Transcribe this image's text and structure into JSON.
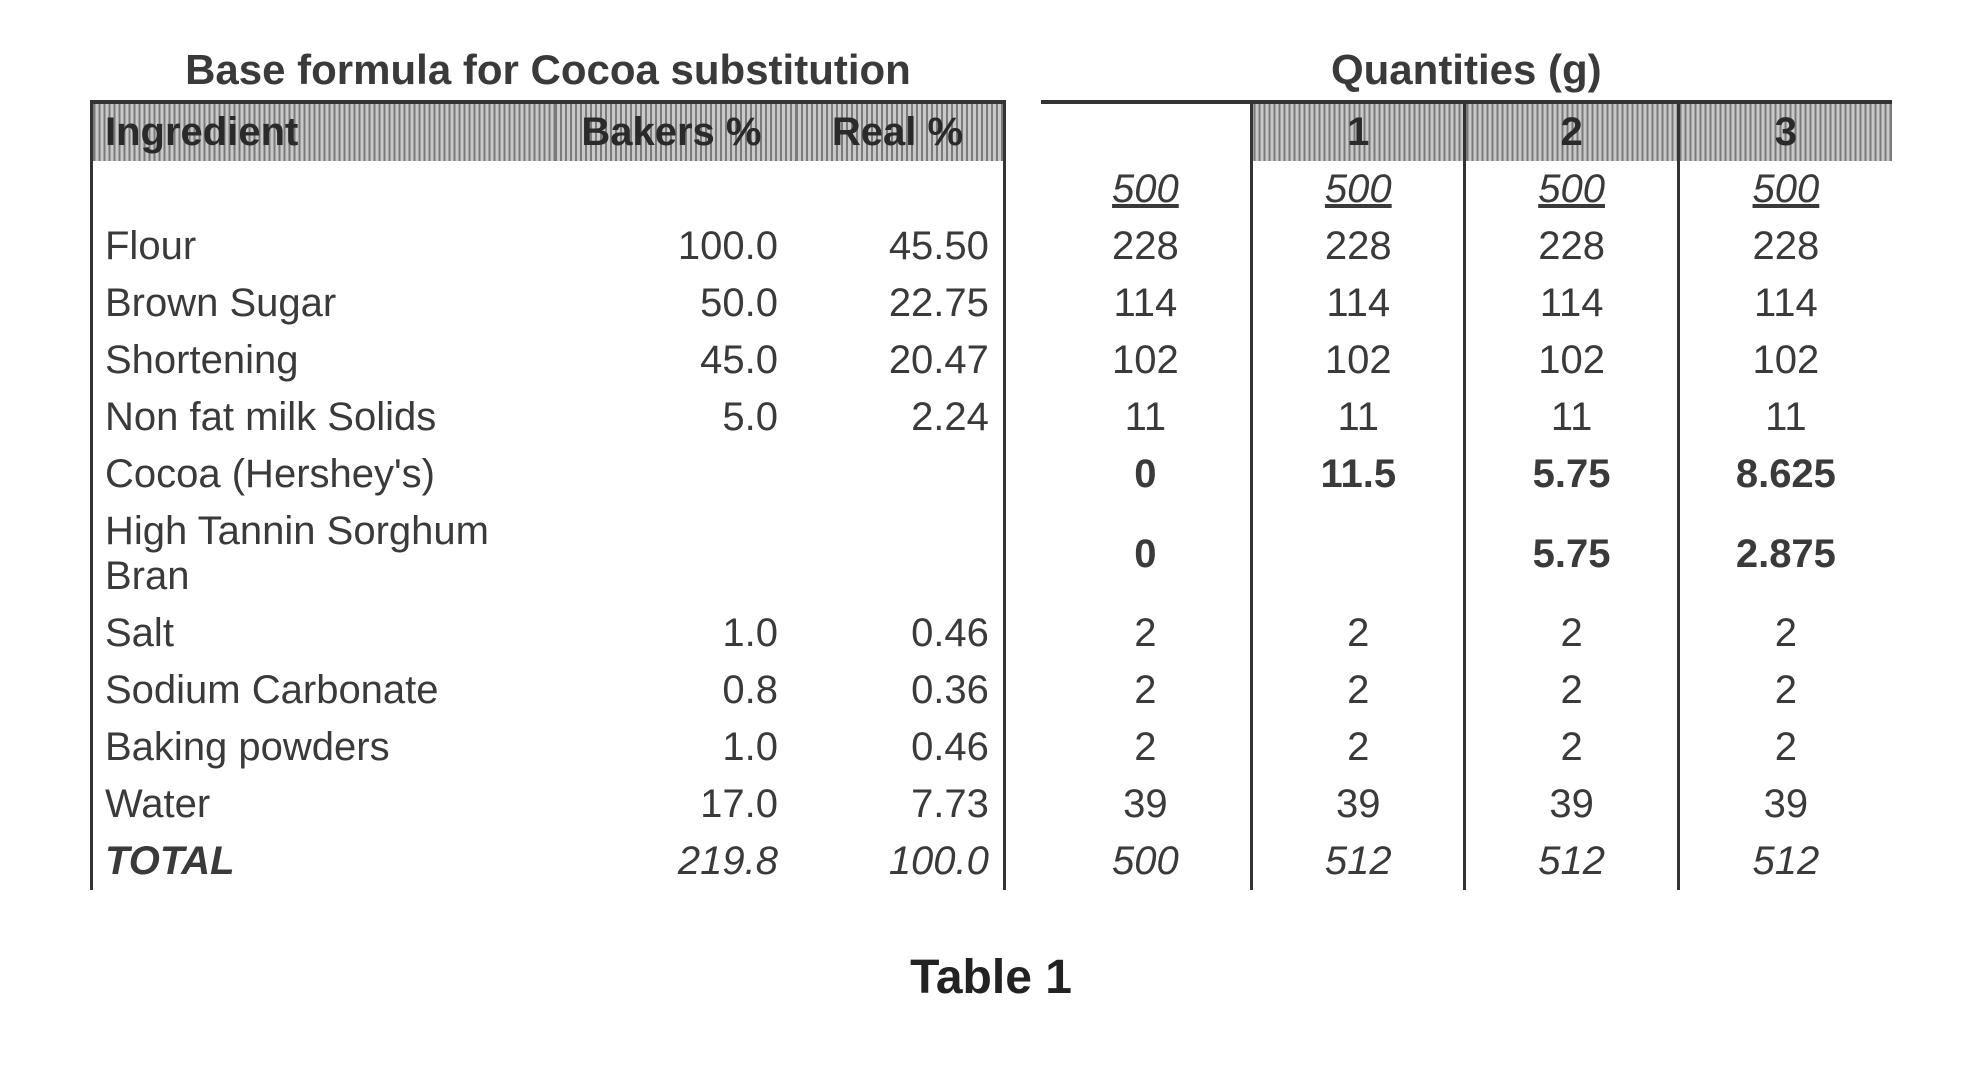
{
  "caption": "Table 1",
  "titles": {
    "left": "Base formula for Cocoa substitution",
    "right": "Quantities (g)"
  },
  "headers": {
    "ingredient": "Ingredient",
    "bakers": "Bakers %",
    "real": "Real %",
    "q0": "",
    "q1": "1",
    "q2": "2",
    "q3": "3"
  },
  "batch": {
    "q0": "500",
    "q1": "500",
    "q2": "500",
    "q3": "500"
  },
  "rows": [
    {
      "name": "Flour",
      "bakers": "100.0",
      "real": "45.50",
      "q0": "228",
      "q1": "228",
      "q2": "228",
      "q3": "228",
      "bold": false
    },
    {
      "name": "Brown Sugar",
      "bakers": "50.0",
      "real": "22.75",
      "q0": "114",
      "q1": "114",
      "q2": "114",
      "q3": "114",
      "bold": false
    },
    {
      "name": "Shortening",
      "bakers": "45.0",
      "real": "20.47",
      "q0": "102",
      "q1": "102",
      "q2": "102",
      "q3": "102",
      "bold": false
    },
    {
      "name": "Non fat milk Solids",
      "bakers": "5.0",
      "real": "2.24",
      "q0": "11",
      "q1": "11",
      "q2": "11",
      "q3": "11",
      "bold": false
    },
    {
      "name": "Cocoa (Hershey's)",
      "bakers": "",
      "real": "",
      "q0": "0",
      "q1": "11.5",
      "q2": "5.75",
      "q3": "8.625",
      "bold": true
    },
    {
      "name": "High Tannin Sorghum Bran",
      "bakers": "",
      "real": "",
      "q0": "0",
      "q1": "",
      "q2": "5.75",
      "q3": "2.875",
      "bold": true
    },
    {
      "name": "Salt",
      "bakers": "1.0",
      "real": "0.46",
      "q0": "2",
      "q1": "2",
      "q2": "2",
      "q3": "2",
      "bold": false
    },
    {
      "name": "Sodium Carbonate",
      "bakers": "0.8",
      "real": "0.36",
      "q0": "2",
      "q1": "2",
      "q2": "2",
      "q3": "2",
      "bold": false
    },
    {
      "name": "Baking powders",
      "bakers": "1.0",
      "real": "0.46",
      "q0": "2",
      "q1": "2",
      "q2": "2",
      "q3": "2",
      "bold": false
    },
    {
      "name": "Water",
      "bakers": "17.0",
      "real": "7.73",
      "q0": "39",
      "q1": "39",
      "q2": "39",
      "q3": "39",
      "bold": false
    }
  ],
  "total": {
    "name": "TOTAL",
    "bakers": "219.8",
    "real": "100.0",
    "q0": "500",
    "q1": "512",
    "q2": "512",
    "q3": "512"
  },
  "style": {
    "hatch_dark": "#7a7a7a",
    "hatch_light": "#c9c9c9",
    "text_color": "#3a3a3a",
    "border_color": "#333333",
    "background": "#ffffff",
    "font_size_body": 40,
    "font_size_title": 42,
    "font_size_caption": 48
  }
}
